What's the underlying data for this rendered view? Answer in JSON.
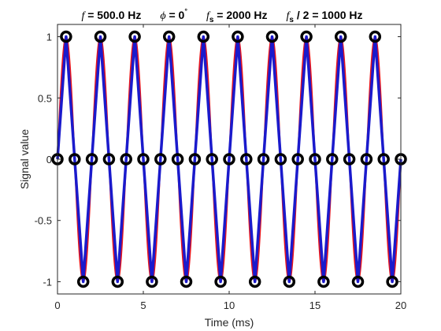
{
  "chart_data": {
    "type": "line",
    "title_parts": {
      "f_symbol": "f",
      "f_text": " = 500.0 Hz",
      "phi_symbol": "ϕ",
      "phi_text": " = 0",
      "phi_degree": "°",
      "fs_symbol": "f",
      "fs_sub": "s",
      "fs_text": " = 2000 Hz",
      "nyq_symbol": "f",
      "nyq_sub": "s",
      "nyq_text": " / 2 = 1000 Hz"
    },
    "xlabel": "Time (ms)",
    "ylabel": "Signal value",
    "xlim": [
      0,
      20
    ],
    "ylim": [
      -1.1,
      1.1
    ],
    "xticks": [
      0,
      5,
      10,
      15,
      20
    ],
    "xtick_labels": [
      "0",
      "5",
      "10",
      "15",
      "20"
    ],
    "yticks": [
      -1,
      -0.5,
      0,
      0.5,
      1
    ],
    "ytick_labels": [
      "-1",
      "-0.5",
      "0",
      "0.5",
      "1"
    ],
    "grid": false,
    "series": [
      {
        "kind": "continuous",
        "function": "sin",
        "frequency_hz": 500,
        "phase_deg": 0,
        "amplitude": 1,
        "color": "#e8141c"
      },
      {
        "kind": "sampled-line",
        "color": "#1a1acc",
        "x": [
          0,
          0.5,
          1,
          1.5,
          2,
          2.5,
          3,
          3.5,
          4,
          4.5,
          5,
          5.5,
          6,
          6.5,
          7,
          7.5,
          8,
          8.5,
          9,
          9.5,
          10,
          10.5,
          11,
          11.5,
          12,
          12.5,
          13,
          13.5,
          14,
          14.5,
          15,
          15.5,
          16,
          16.5,
          17,
          17.5,
          18,
          18.5,
          19,
          19.5,
          20
        ],
        "y": [
          0,
          1,
          0,
          -1,
          0,
          1,
          0,
          -1,
          0,
          1,
          0,
          -1,
          0,
          1,
          0,
          -1,
          0,
          1,
          0,
          -1,
          0,
          1,
          0,
          -1,
          0,
          1,
          0,
          -1,
          0,
          1,
          0,
          -1,
          0,
          1,
          0,
          -1,
          0,
          1,
          0,
          -1,
          0
        ]
      },
      {
        "kind": "sample-markers",
        "marker": "circle",
        "color": "#000000",
        "x": [
          0,
          0.5,
          1,
          1.5,
          2,
          2.5,
          3,
          3.5,
          4,
          4.5,
          5,
          5.5,
          6,
          6.5,
          7,
          7.5,
          8,
          8.5,
          9,
          9.5,
          10,
          10.5,
          11,
          11.5,
          12,
          12.5,
          13,
          13.5,
          14,
          14.5,
          15,
          15.5,
          16,
          16.5,
          17,
          17.5,
          18,
          18.5,
          19,
          19.5,
          20
        ],
        "y": [
          0,
          1,
          0,
          -1,
          0,
          1,
          0,
          -1,
          0,
          1,
          0,
          -1,
          0,
          1,
          0,
          -1,
          0,
          1,
          0,
          -1,
          0,
          1,
          0,
          -1,
          0,
          1,
          0,
          -1,
          0,
          1,
          0,
          -1,
          0,
          1,
          0,
          -1,
          0,
          1,
          0,
          -1,
          0
        ]
      }
    ]
  }
}
